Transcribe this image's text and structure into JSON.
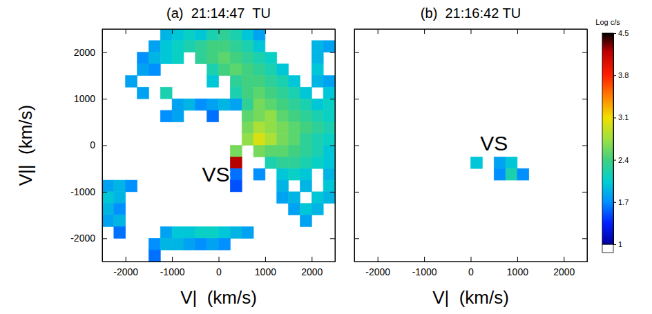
{
  "chart_data": [
    {
      "type": "heatmap",
      "title": "(a)  21:14:47  TU",
      "xlabel": "V|  (km/s)",
      "ylabel": "V||  (km/s)",
      "xlim": [
        -2500,
        2500
      ],
      "ylim": [
        -2500,
        2500
      ],
      "xticks": [
        -2000,
        -1000,
        0,
        1000,
        2000
      ],
      "yticks": [
        -2000,
        -1000,
        0,
        1000,
        2000
      ],
      "annotations": [
        {
          "text": "VS",
          "x": -60,
          "y": -620
        }
      ],
      "cells": [
        [
          -1125,
          2375,
          1.9
        ],
        [
          -875,
          2375,
          2.0
        ],
        [
          -625,
          2375,
          2.1
        ],
        [
          -375,
          2375,
          2.0
        ],
        [
          -125,
          2375,
          2.2
        ],
        [
          125,
          2375,
          2.3
        ],
        [
          375,
          2375,
          2.2
        ],
        [
          625,
          2375,
          2.0
        ],
        [
          875,
          2375,
          1.8
        ],
        [
          -1375,
          2125,
          1.8
        ],
        [
          -1125,
          2125,
          2.0
        ],
        [
          -875,
          2125,
          2.1
        ],
        [
          -625,
          2125,
          2.2
        ],
        [
          -375,
          2125,
          2.3
        ],
        [
          -125,
          2125,
          2.4
        ],
        [
          125,
          2125,
          2.4
        ],
        [
          375,
          2125,
          2.3
        ],
        [
          625,
          2125,
          2.2
        ],
        [
          875,
          2125,
          2.0
        ],
        [
          2125,
          2125,
          1.9
        ],
        [
          2375,
          2125,
          1.8
        ],
        [
          -1625,
          1875,
          1.7
        ],
        [
          -1375,
          1875,
          1.9
        ],
        [
          -1125,
          1875,
          2.0
        ],
        [
          -875,
          1875,
          2.1
        ],
        [
          -375,
          1875,
          2.3
        ],
        [
          -125,
          1875,
          2.4
        ],
        [
          125,
          1875,
          2.5
        ],
        [
          375,
          1875,
          2.4
        ],
        [
          625,
          1875,
          2.3
        ],
        [
          875,
          1875,
          2.2
        ],
        [
          1125,
          1875,
          2.1
        ],
        [
          2125,
          1875,
          1.9
        ],
        [
          -1625,
          1625,
          1.8
        ],
        [
          -1375,
          1625,
          1.7
        ],
        [
          -125,
          1625,
          2.2
        ],
        [
          125,
          1625,
          2.4
        ],
        [
          375,
          1625,
          2.5
        ],
        [
          625,
          1625,
          2.4
        ],
        [
          875,
          1625,
          2.3
        ],
        [
          1125,
          1625,
          2.2
        ],
        [
          1375,
          1625,
          2.0
        ],
        [
          2125,
          1625,
          2.0
        ],
        [
          -1875,
          1375,
          1.8
        ],
        [
          -125,
          1375,
          2.0
        ],
        [
          375,
          1375,
          2.3
        ],
        [
          625,
          1375,
          2.4
        ],
        [
          875,
          1375,
          2.4
        ],
        [
          1125,
          1375,
          2.3
        ],
        [
          1375,
          1375,
          2.2
        ],
        [
          1625,
          1375,
          2.0
        ],
        [
          2125,
          1375,
          1.9
        ],
        [
          2375,
          1375,
          1.8
        ],
        [
          -1625,
          1125,
          1.8
        ],
        [
          -1125,
          1125,
          2.2
        ],
        [
          375,
          1125,
          2.2
        ],
        [
          625,
          1125,
          2.4
        ],
        [
          875,
          1125,
          2.5
        ],
        [
          1125,
          1125,
          2.4
        ],
        [
          1375,
          1125,
          2.3
        ],
        [
          1625,
          1125,
          2.2
        ],
        [
          1875,
          1125,
          2.0
        ],
        [
          2375,
          1125,
          2.0
        ],
        [
          -875,
          875,
          1.8
        ],
        [
          -625,
          875,
          1.9
        ],
        [
          -375,
          875,
          1.7
        ],
        [
          -125,
          875,
          1.8
        ],
        [
          125,
          875,
          1.9
        ],
        [
          375,
          875,
          1.8
        ],
        [
          625,
          875,
          2.3
        ],
        [
          875,
          875,
          2.6
        ],
        [
          1125,
          875,
          2.5
        ],
        [
          1375,
          875,
          2.4
        ],
        [
          1625,
          875,
          2.3
        ],
        [
          1875,
          875,
          2.2
        ],
        [
          2125,
          875,
          2.0
        ],
        [
          2375,
          875,
          2.1
        ],
        [
          -1125,
          625,
          1.7
        ],
        [
          -875,
          625,
          1.8
        ],
        [
          -125,
          625,
          1.6
        ],
        [
          625,
          625,
          2.5
        ],
        [
          875,
          625,
          2.6
        ],
        [
          1125,
          625,
          2.7
        ],
        [
          1375,
          625,
          2.5
        ],
        [
          1625,
          625,
          2.4
        ],
        [
          1875,
          625,
          2.3
        ],
        [
          2125,
          625,
          2.2
        ],
        [
          2375,
          625,
          2.1
        ],
        [
          625,
          375,
          2.6
        ],
        [
          875,
          375,
          2.8
        ],
        [
          1125,
          375,
          2.7
        ],
        [
          1375,
          375,
          2.6
        ],
        [
          1625,
          375,
          2.5
        ],
        [
          1875,
          375,
          2.4
        ],
        [
          2125,
          375,
          2.3
        ],
        [
          2375,
          375,
          2.2
        ],
        [
          625,
          125,
          2.7
        ],
        [
          875,
          125,
          3.0
        ],
        [
          1125,
          125,
          2.8
        ],
        [
          1375,
          125,
          2.6
        ],
        [
          1625,
          125,
          2.5
        ],
        [
          1875,
          125,
          2.3
        ],
        [
          2125,
          125,
          2.2
        ],
        [
          2375,
          125,
          2.1
        ],
        [
          375,
          -125,
          2.6
        ],
        [
          875,
          -125,
          2.6
        ],
        [
          1125,
          -125,
          2.5
        ],
        [
          1375,
          -125,
          2.5
        ],
        [
          1625,
          -125,
          2.4
        ],
        [
          1875,
          -125,
          2.3
        ],
        [
          2125,
          -125,
          2.2
        ],
        [
          2375,
          -125,
          2.0
        ],
        [
          375,
          -375,
          4.2
        ],
        [
          1125,
          -375,
          2.2
        ],
        [
          1375,
          -375,
          2.3
        ],
        [
          1625,
          -375,
          2.3
        ],
        [
          1875,
          -375,
          2.2
        ],
        [
          2125,
          -375,
          2.1
        ],
        [
          2375,
          -375,
          2.0
        ],
        [
          375,
          -625,
          1.6
        ],
        [
          875,
          -625,
          1.7
        ],
        [
          1375,
          -625,
          2.0
        ],
        [
          1625,
          -625,
          2.1
        ],
        [
          1875,
          -625,
          2.0
        ],
        [
          2375,
          -625,
          1.9
        ],
        [
          -2375,
          -875,
          1.8
        ],
        [
          -2125,
          -875,
          1.9
        ],
        [
          -1875,
          -875,
          1.7
        ],
        [
          375,
          -875,
          1.5
        ],
        [
          1375,
          -875,
          1.9
        ],
        [
          1875,
          -875,
          1.9
        ],
        [
          2375,
          -875,
          2.0
        ],
        [
          -2375,
          -1125,
          2.0
        ],
        [
          -2125,
          -1125,
          1.9
        ],
        [
          1375,
          -1125,
          1.8
        ],
        [
          1625,
          -1125,
          1.9
        ],
        [
          2125,
          -1125,
          2.0
        ],
        [
          2375,
          -1125,
          1.9
        ],
        [
          -2375,
          -1375,
          1.9
        ],
        [
          -2125,
          -1375,
          1.7
        ],
        [
          1625,
          -1375,
          1.8
        ],
        [
          1875,
          -1375,
          2.0
        ],
        [
          2125,
          -1375,
          1.9
        ],
        [
          -2375,
          -1625,
          1.8
        ],
        [
          -2125,
          -1625,
          1.9
        ],
        [
          1875,
          -1625,
          1.8
        ],
        [
          -2125,
          -1875,
          1.6
        ],
        [
          -1125,
          -1875,
          1.8
        ],
        [
          -875,
          -1875,
          2.0
        ],
        [
          -625,
          -1875,
          2.0
        ],
        [
          -375,
          -1875,
          2.1
        ],
        [
          -125,
          -1875,
          2.1
        ],
        [
          125,
          -1875,
          2.0
        ],
        [
          375,
          -1875,
          1.9
        ],
        [
          625,
          -1875,
          1.8
        ],
        [
          -1375,
          -2125,
          1.7
        ],
        [
          -1125,
          -2125,
          1.9
        ],
        [
          -875,
          -2125,
          1.9
        ],
        [
          -625,
          -2125,
          1.8
        ],
        [
          -375,
          -2125,
          1.7
        ],
        [
          -125,
          -2125,
          1.8
        ],
        [
          125,
          -2125,
          1.7
        ],
        [
          -1375,
          -2375,
          1.6
        ]
      ]
    },
    {
      "type": "heatmap",
      "title": "(b)  21:16:42 TU",
      "xlabel": "V|  (km/s)",
      "xlim": [
        -2500,
        2500
      ],
      "ylim": [
        -2500,
        2500
      ],
      "xticks": [
        -2000,
        -1000,
        0,
        1000,
        2000
      ],
      "yticks": [
        -2000,
        -1000,
        0,
        1000,
        2000
      ],
      "tick_labels": "x",
      "annotations": [
        {
          "text": "VS",
          "x": 500,
          "y": 50
        }
      ],
      "cells": [
        [
          125,
          -375,
          2.0
        ],
        [
          625,
          -375,
          1.8
        ],
        [
          875,
          -375,
          2.0
        ],
        [
          625,
          -625,
          1.7
        ],
        [
          875,
          -625,
          2.2
        ],
        [
          1125,
          -625,
          1.7
        ]
      ],
      "colorbar": {
        "label": "Log c/s",
        "range": [
          1,
          4.5
        ],
        "ticks": [
          1,
          1.7,
          2.4,
          3.1,
          3.8,
          4.5
        ]
      }
    }
  ]
}
